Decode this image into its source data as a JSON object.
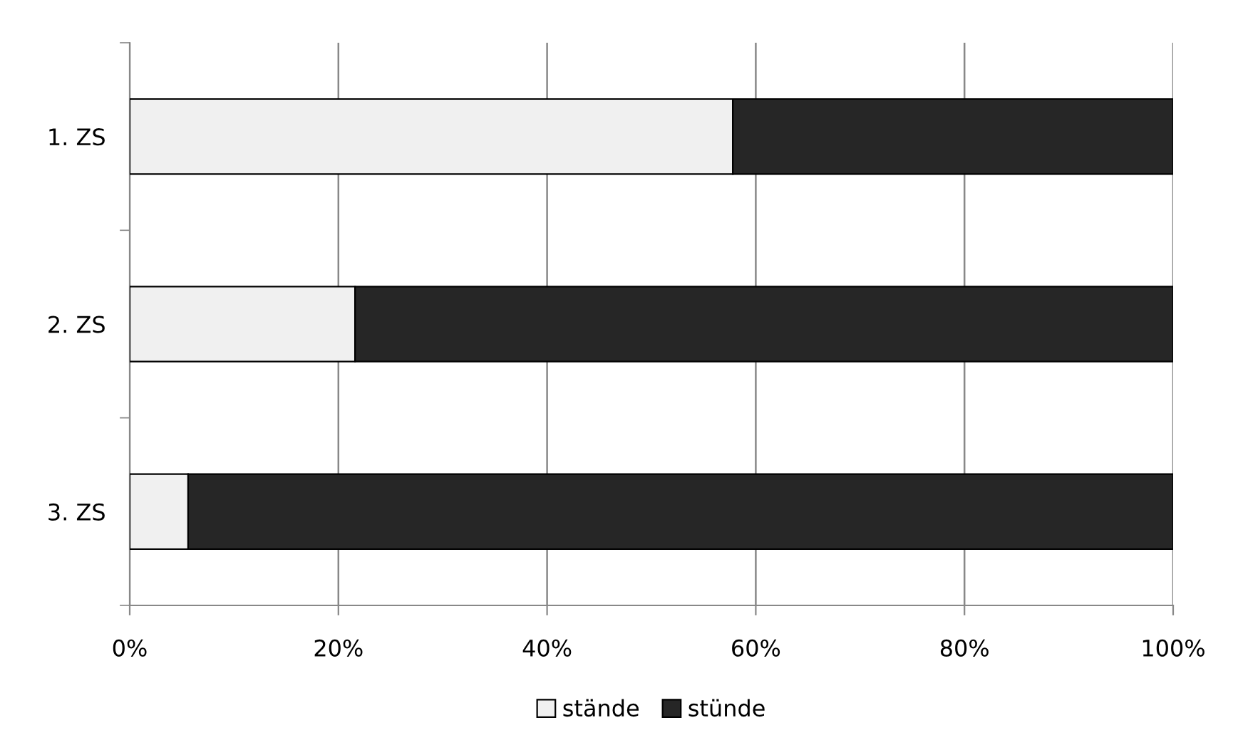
{
  "chart_data": {
    "type": "bar",
    "orientation": "horizontal",
    "stacked": true,
    "categories": [
      "1. ZS",
      "2. ZS",
      "3. ZS"
    ],
    "series": [
      {
        "name": "stände",
        "color": "#f0f0f0",
        "values": [
          57.8,
          21.6,
          5.6
        ]
      },
      {
        "name": "stünde",
        "color": "#262626",
        "values": [
          42.2,
          78.4,
          94.4
        ]
      }
    ],
    "xlim": [
      0,
      100
    ],
    "xticks": [
      {
        "value": 0,
        "label": "0%"
      },
      {
        "value": 20,
        "label": "20%"
      },
      {
        "value": 40,
        "label": "40%"
      },
      {
        "value": 60,
        "label": "60%"
      },
      {
        "value": 80,
        "label": "80%"
      },
      {
        "value": 100,
        "label": "100%"
      }
    ],
    "grid": "x",
    "legend": "bottom"
  }
}
